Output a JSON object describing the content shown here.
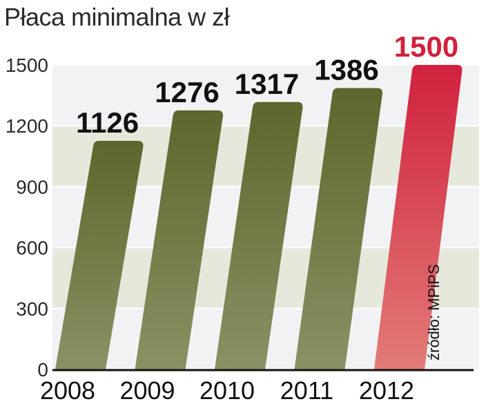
{
  "chart_data": {
    "type": "bar",
    "title": "Płaca minimalna w zł",
    "categories": [
      "2008",
      "2009",
      "2010",
      "2011",
      "2012"
    ],
    "values": [
      1126,
      1276,
      1317,
      1386,
      1500
    ],
    "value_labels": [
      "1126",
      "1276",
      "1317",
      "1386",
      "1500"
    ],
    "y_ticks": [
      "0",
      "300",
      "600",
      "900",
      "1200",
      "1500"
    ],
    "ylim": [
      0,
      1500
    ],
    "xlabel": "",
    "ylabel": "",
    "source": "źródło: MPiPS",
    "grid": true,
    "colors": {
      "bar": "#5b672c",
      "bar_light": "#8a9163",
      "highlight_bar": "#d0213d",
      "highlight_bar_light": "#e27b78",
      "highlight_label": "#d0213d",
      "label": "#111111",
      "band": "#d4d5bf",
      "band_alt": "#e6e7ea"
    }
  }
}
